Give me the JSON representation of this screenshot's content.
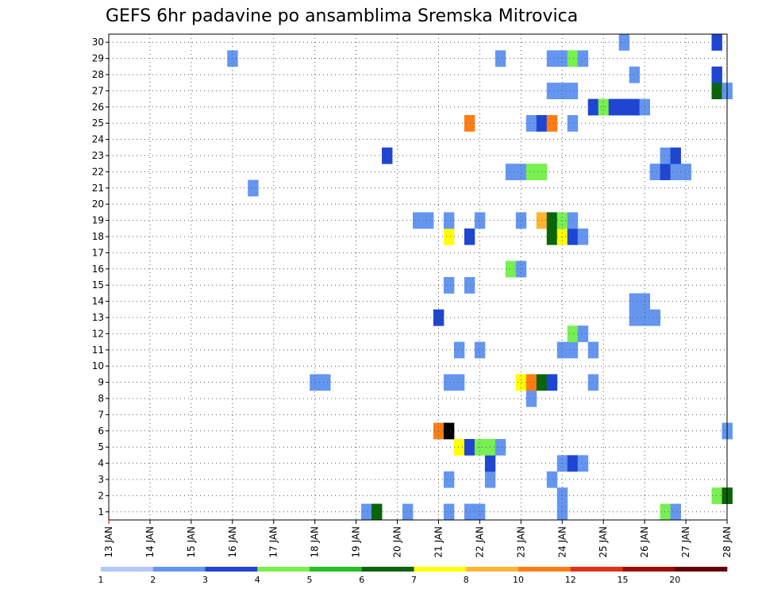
{
  "chart_data": {
    "type": "heatmap",
    "title": "GEFS 6hr padavine po ansamblima Sremska Mitrovica",
    "x_ticks": [
      "13 JAN",
      "14 JAN",
      "15 JAN",
      "16 JAN",
      "17 JAN",
      "18 JAN",
      "19 JAN",
      "20 JAN",
      "21 JAN",
      "22 JAN",
      "23 JAN",
      "24 JAN",
      "25 JAN",
      "26 JAN",
      "27 JAN",
      "28 JAN"
    ],
    "y_ticks": [
      "1",
      "2",
      "3",
      "4",
      "5",
      "6",
      "7",
      "8",
      "9",
      "10",
      "11",
      "12",
      "13",
      "14",
      "15",
      "16",
      "17",
      "18",
      "19",
      "20",
      "21",
      "22",
      "23",
      "24",
      "25",
      "26",
      "27",
      "28",
      "29",
      "30"
    ],
    "xlim_days": [
      0,
      15
    ],
    "ylim": [
      0.5,
      30.5
    ],
    "grid": true,
    "legend": {
      "labels": [
        "1",
        "2",
        "3",
        "4",
        "5",
        "6",
        "7",
        "8",
        "10",
        "12",
        "15",
        "20"
      ],
      "colors": [
        "#b4c8f5",
        "#6496f0",
        "#1e46d2",
        "#78f050",
        "#28be28",
        "#0a640a",
        "#ffff00",
        "#ffb432",
        "#ff7d14",
        "#e13214",
        "#a00a0a",
        "#640000"
      ]
    },
    "cells": [
      [
        6.25,
        1,
        1
      ],
      [
        6.5,
        1,
        5
      ],
      [
        7.25,
        1,
        1
      ],
      [
        8.25,
        1,
        1
      ],
      [
        8.75,
        1,
        1
      ],
      [
        9,
        1,
        1
      ],
      [
        11,
        1,
        1
      ],
      [
        13.5,
        1,
        3
      ],
      [
        13.75,
        1,
        1
      ],
      [
        11,
        2,
        1
      ],
      [
        14.75,
        2,
        3
      ],
      [
        15,
        2,
        5
      ],
      [
        8.25,
        3,
        1
      ],
      [
        9.25,
        3,
        1
      ],
      [
        10.75,
        3,
        1
      ],
      [
        9.25,
        4,
        2
      ],
      [
        11,
        4,
        1
      ],
      [
        11.25,
        4,
        2
      ],
      [
        11.5,
        4,
        1
      ],
      [
        8.5,
        5,
        6
      ],
      [
        8.75,
        5,
        2
      ],
      [
        9,
        5,
        3
      ],
      [
        9.25,
        5,
        3
      ],
      [
        9.5,
        5,
        1
      ],
      [
        8,
        6,
        8
      ],
      [
        8.25,
        6,
        14
      ],
      [
        15,
        6,
        1
      ],
      [
        10.25,
        8,
        1
      ],
      [
        5,
        9,
        1
      ],
      [
        5.25,
        9,
        1
      ],
      [
        8.25,
        9,
        1
      ],
      [
        8.5,
        9,
        1
      ],
      [
        10,
        9,
        6
      ],
      [
        10.25,
        9,
        8
      ],
      [
        10.5,
        9,
        5
      ],
      [
        10.75,
        9,
        2
      ],
      [
        11.75,
        9,
        1
      ],
      [
        8.5,
        11,
        1
      ],
      [
        9,
        11,
        1
      ],
      [
        11,
        11,
        1
      ],
      [
        11.25,
        11,
        1
      ],
      [
        11.75,
        11,
        1
      ],
      [
        11.25,
        12,
        3
      ],
      [
        11.5,
        12,
        1
      ],
      [
        8,
        13,
        2
      ],
      [
        12.75,
        13,
        1
      ],
      [
        13,
        13,
        1
      ],
      [
        13.25,
        13,
        1
      ],
      [
        12.75,
        14,
        1
      ],
      [
        13,
        14,
        1
      ],
      [
        8.25,
        15,
        1
      ],
      [
        8.75,
        15,
        1
      ],
      [
        9.75,
        16,
        3
      ],
      [
        10,
        16,
        1
      ],
      [
        8.25,
        18,
        6
      ],
      [
        8.75,
        18,
        2
      ],
      [
        10.75,
        18,
        5
      ],
      [
        11,
        18,
        6
      ],
      [
        11.25,
        18,
        2
      ],
      [
        11.5,
        18,
        1
      ],
      [
        7.5,
        19,
        1
      ],
      [
        7.75,
        19,
        1
      ],
      [
        8.25,
        19,
        1
      ],
      [
        9,
        19,
        1
      ],
      [
        10,
        19,
        1
      ],
      [
        10.5,
        19,
        7
      ],
      [
        10.75,
        19,
        5
      ],
      [
        11,
        19,
        3
      ],
      [
        11.25,
        19,
        1
      ],
      [
        3.5,
        21,
        1
      ],
      [
        9.75,
        22,
        1
      ],
      [
        10,
        22,
        1
      ],
      [
        10.25,
        22,
        3
      ],
      [
        10.5,
        22,
        3
      ],
      [
        13.25,
        22,
        1
      ],
      [
        13.5,
        22,
        2
      ],
      [
        13.75,
        22,
        1
      ],
      [
        14,
        22,
        1
      ],
      [
        6.75,
        23,
        2
      ],
      [
        13.5,
        23,
        1
      ],
      [
        13.75,
        23,
        2
      ],
      [
        8.75,
        25,
        8
      ],
      [
        10.25,
        25,
        1
      ],
      [
        10.5,
        25,
        2
      ],
      [
        10.75,
        25,
        8
      ],
      [
        11.25,
        25,
        1
      ],
      [
        11.75,
        26,
        2
      ],
      [
        12,
        26,
        3
      ],
      [
        12.25,
        26,
        2
      ],
      [
        12.5,
        26,
        2
      ],
      [
        12.75,
        26,
        2
      ],
      [
        13,
        26,
        1
      ],
      [
        10.75,
        27,
        1
      ],
      [
        11,
        27,
        1
      ],
      [
        11.25,
        27,
        1
      ],
      [
        14.75,
        27,
        5
      ],
      [
        15,
        27,
        1
      ],
      [
        12.75,
        28,
        1
      ],
      [
        14.75,
        28,
        2
      ],
      [
        3,
        29,
        1
      ],
      [
        9.5,
        29,
        1
      ],
      [
        10.75,
        29,
        1
      ],
      [
        11,
        29,
        1
      ],
      [
        11.25,
        29,
        3
      ],
      [
        11.5,
        29,
        1
      ],
      [
        12.5,
        30,
        1
      ],
      [
        14.75,
        30,
        2
      ]
    ]
  }
}
